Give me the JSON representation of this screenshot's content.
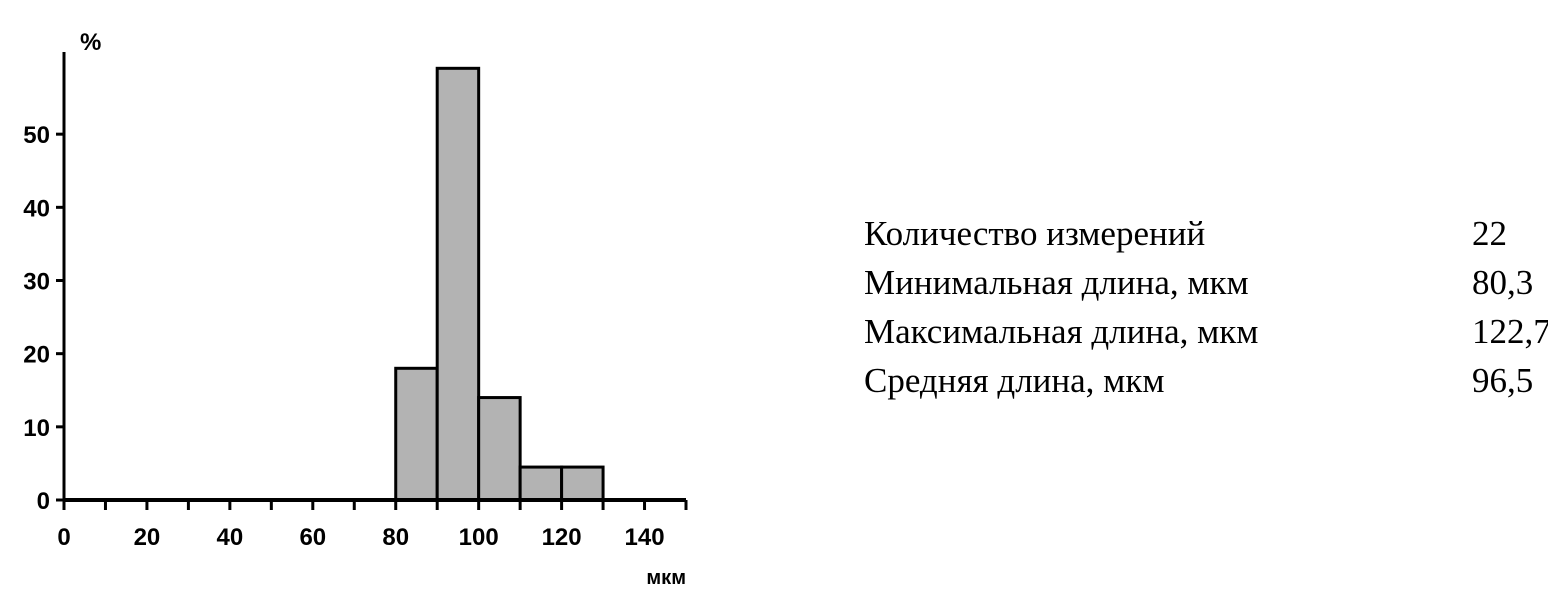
{
  "chart_data": {
    "type": "bar",
    "title": "",
    "xlabel": "мкм",
    "ylabel": "%",
    "xlim": [
      0,
      150
    ],
    "ylim": [
      0,
      60
    ],
    "x_ticks": [
      0,
      20,
      40,
      60,
      80,
      100,
      120,
      140
    ],
    "y_ticks": [
      0,
      10,
      20,
      30,
      40,
      50
    ],
    "bins": [
      {
        "from": 80,
        "to": 90,
        "value": 18
      },
      {
        "from": 90,
        "to": 100,
        "value": 59
      },
      {
        "from": 100,
        "to": 110,
        "value": 14
      },
      {
        "from": 110,
        "to": 120,
        "value": 4.5
      },
      {
        "from": 120,
        "to": 130,
        "value": 4.5
      }
    ],
    "bar_color": "#b3b3b3",
    "grid": false
  },
  "stats": [
    {
      "label": "Количество измерений",
      "value": "22"
    },
    {
      "label": "Минимальная длина, мкм",
      "value": "80,3"
    },
    {
      "label": "Максимальная длина, мкм",
      "value": "122,7"
    },
    {
      "label": "Средняя длина, мкм",
      "value": "96,5"
    }
  ]
}
